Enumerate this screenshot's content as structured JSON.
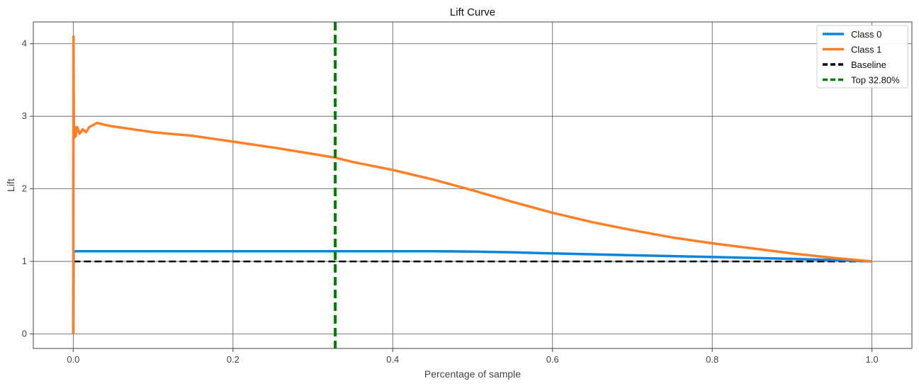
{
  "chart_data": {
    "type": "line",
    "title": "Lift Curve",
    "xlabel": "Percentage of sample",
    "ylabel": "Lift",
    "xlim": [
      -0.05,
      1.05
    ],
    "ylim": [
      -0.2,
      4.3
    ],
    "xticks": [
      0.0,
      0.2,
      0.4,
      0.6,
      0.8,
      1.0
    ],
    "xtick_labels": [
      "0.0",
      "0.2",
      "0.4",
      "0.6",
      "0.8",
      "1.0"
    ],
    "yticks": [
      0,
      1,
      2,
      3,
      4
    ],
    "ytick_labels": [
      "0",
      "1",
      "2",
      "3",
      "4"
    ],
    "grid": true,
    "legend_position": "top-right",
    "series": [
      {
        "name": "Class 0",
        "color": "#0a84e0",
        "style": "solid",
        "x": [
          0.0,
          0.0005,
          0.001,
          0.1,
          0.2,
          0.3,
          0.4,
          0.45,
          0.5,
          0.55,
          0.6,
          0.7,
          0.8,
          0.9,
          0.95,
          1.0
        ],
        "y": [
          0.0,
          1.14,
          1.14,
          1.14,
          1.14,
          1.14,
          1.14,
          1.14,
          1.135,
          1.125,
          1.11,
          1.085,
          1.06,
          1.035,
          1.02,
          1.0
        ]
      },
      {
        "name": "Class 1",
        "color": "#ff7f27",
        "style": "solid",
        "x": [
          0.0,
          0.0003,
          0.0006,
          0.001,
          0.002,
          0.003,
          0.005,
          0.008,
          0.012,
          0.016,
          0.02,
          0.025,
          0.03,
          0.04,
          0.05,
          0.1,
          0.15,
          0.2,
          0.25,
          0.3,
          0.328,
          0.35,
          0.4,
          0.45,
          0.5,
          0.55,
          0.6,
          0.65,
          0.7,
          0.75,
          0.8,
          0.85,
          0.9,
          0.95,
          1.0
        ],
        "y": [
          0.0,
          4.1,
          3.3,
          2.7,
          2.85,
          2.72,
          2.85,
          2.76,
          2.82,
          2.78,
          2.85,
          2.88,
          2.91,
          2.88,
          2.86,
          2.78,
          2.73,
          2.65,
          2.57,
          2.48,
          2.43,
          2.37,
          2.26,
          2.13,
          1.98,
          1.82,
          1.67,
          1.54,
          1.43,
          1.33,
          1.25,
          1.18,
          1.11,
          1.05,
          1.0
        ]
      },
      {
        "name": "Baseline",
        "color": "#000000",
        "style": "dashed",
        "x": [
          0.0,
          1.0
        ],
        "y": [
          1.0,
          1.0
        ]
      }
    ],
    "vline": {
      "name": "Top 32.80%",
      "x": 0.328,
      "color": "#008000",
      "style": "dashed"
    },
    "legend": [
      {
        "label": "Class 0",
        "color": "#0a84e0",
        "style": "solid"
      },
      {
        "label": "Class 1",
        "color": "#ff7f27",
        "style": "solid"
      },
      {
        "label": "Baseline",
        "color": "#000000",
        "style": "dashed"
      },
      {
        "label": "Top 32.80%",
        "color": "#008000",
        "style": "dashed"
      }
    ]
  }
}
